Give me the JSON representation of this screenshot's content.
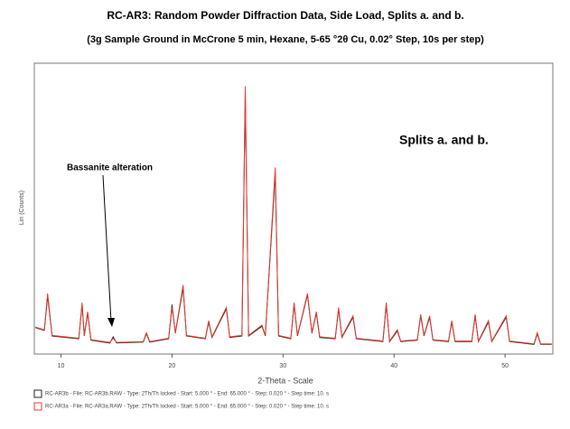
{
  "chart_data": {
    "type": "line",
    "title": "RC-AR3:  Random Powder Diffraction Data, Side Load, Splits a. and b.",
    "subtitle": "(3g Sample Ground in McCrone 5 min, Hexane, 5-65 °2θ Cu, 0.02° Step, 10s per step)",
    "x_label": "2-Theta - Scale",
    "y_label": "Lin (Counts)",
    "annotations": [
      "Splits a. and b.",
      "Bassanite alteration"
    ],
    "xlim": [
      7.6,
      54.3
    ],
    "xticks": [
      10,
      20,
      30,
      40,
      50
    ],
    "ylim": [
      0,
      1000
    ],
    "x": [
      7.7,
      8.5,
      8.8,
      9.2,
      11.6,
      11.9,
      12.1,
      12.4,
      12.7,
      14.4,
      14.7,
      15.0,
      17.4,
      17.7,
      18.0,
      19.7,
      20.0,
      20.3,
      21.0,
      21.3,
      23.0,
      23.3,
      23.6,
      24.9,
      25.2,
      26.3,
      26.6,
      26.9,
      28.1,
      28.4,
      29.3,
      29.6,
      30.7,
      31.0,
      31.3,
      32.2,
      32.6,
      33.0,
      33.3,
      34.7,
      35.0,
      35.3,
      36.3,
      36.6,
      39.0,
      39.3,
      39.6,
      40.3,
      40.6,
      42.1,
      42.4,
      42.7,
      43.2,
      43.5,
      44.9,
      45.2,
      45.5,
      47.0,
      47.3,
      47.6,
      48.5,
      48.8,
      50.1,
      50.4,
      52.6,
      52.9,
      53.2,
      54.2
    ],
    "series": [
      {
        "name": "RC-AR3b - File: RC-AR3b.RAW - Type: 2Th/Th locked - Start: 5.000 ° - End: 65.000 ° - Step: 0.020 ° - Step time: 10. s",
        "color": "#222222",
        "values": [
          88,
          78,
          200,
          58,
          48,
          170,
          58,
          140,
          43,
          33,
          55,
          33,
          36,
          66,
          36,
          48,
          170,
          68,
          230,
          58,
          48,
          108,
          53,
          155,
          53,
          58,
          920,
          58,
          93,
          58,
          640,
          58,
          48,
          170,
          58,
          205,
          68,
          140,
          53,
          48,
          155,
          53,
          125,
          48,
          38,
          170,
          38,
          76,
          38,
          43,
          130,
          58,
          125,
          43,
          38,
          108,
          38,
          38,
          130,
          38,
          108,
          38,
          125,
          38,
          28,
          66,
          28,
          28
        ]
      },
      {
        "name": "RC-AR3a - File: RC-AR3a.RAW - Type: 2Th/Th locked - Start: 5.000 ° - End: 65.000 ° - Step: 0.020 ° - Step time: 10. s",
        "color": "#e8392f",
        "values": [
          90,
          80,
          210,
          60,
          50,
          177,
          60,
          145,
          45,
          35,
          50,
          35,
          38,
          70,
          38,
          50,
          160,
          70,
          240,
          60,
          50,
          113,
          55,
          160,
          55,
          60,
          950,
          60,
          97,
          60,
          660,
          60,
          50,
          177,
          60,
          210,
          70,
          145,
          55,
          50,
          160,
          55,
          130,
          50,
          40,
          177,
          40,
          80,
          40,
          45,
          135,
          60,
          130,
          45,
          40,
          113,
          40,
          40,
          135,
          40,
          113,
          40,
          130,
          40,
          30,
          70,
          30,
          30
        ]
      }
    ]
  }
}
